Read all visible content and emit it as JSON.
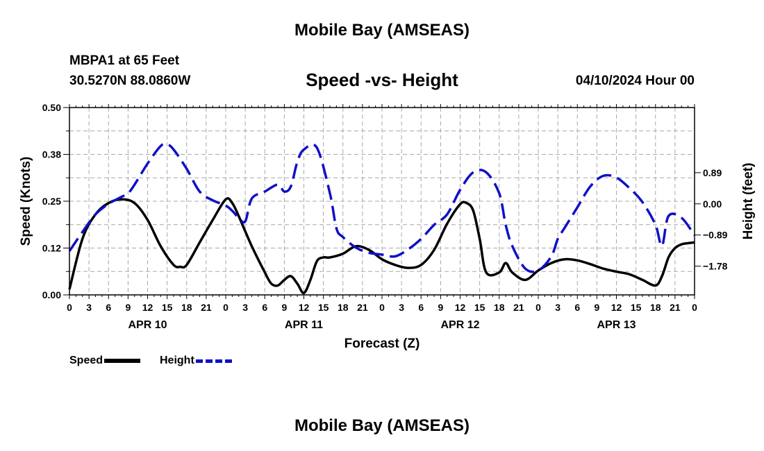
{
  "header": {
    "title": "Mobile Bay (AMSEAS)",
    "station": "MBPA1 at 65 Feet",
    "coords": "30.5270N  88.0860W",
    "subtitle": "Speed -vs- Height",
    "datetime": "04/10/2024 Hour 00"
  },
  "footer": {
    "title": "Mobile Bay (AMSEAS)"
  },
  "colors": {
    "speed": "#000000",
    "height": "#1010c8",
    "grid": "#a8a8a8"
  },
  "legend": {
    "speed_label": "Speed",
    "height_label": "Height"
  },
  "chart_data": {
    "type": "line",
    "title": "Speed -vs- Height",
    "xlabel": "Forecast (Z)",
    "ylabel": "Speed (Knots)",
    "y2label": "Height (feet)",
    "x_range_hours": [
      0,
      96
    ],
    "x_tick_step_hours": 3,
    "x_tick_labels": [
      "0",
      "3",
      "6",
      "9",
      "12",
      "15",
      "18",
      "21",
      "0",
      "3",
      "6",
      "9",
      "12",
      "15",
      "18",
      "21",
      "0",
      "3",
      "6",
      "9",
      "12",
      "15",
      "18",
      "21",
      "0",
      "3",
      "6",
      "9",
      "12",
      "15",
      "18",
      "21",
      "0"
    ],
    "x_day_labels": [
      {
        "label": "APR 10",
        "hour": 12
      },
      {
        "label": "APR 11",
        "hour": 36
      },
      {
        "label": "APR 12",
        "hour": 60
      },
      {
        "label": "APR 13",
        "hour": 84
      }
    ],
    "ylim": [
      0,
      0.5
    ],
    "y_ticks": [
      0,
      0.125,
      0.25,
      0.375,
      0.5
    ],
    "y_tick_labels": [
      "0.00",
      "0.12",
      "0.25",
      "0.38",
      "0.50"
    ],
    "y2lim": [
      -2.6,
      2.75
    ],
    "y2_ticks": [
      -1.78,
      -0.89,
      0.0,
      0.89
    ],
    "y2_tick_labels": [
      "−1.78",
      "−0.89",
      "0.00",
      "0.89"
    ],
    "grid": true,
    "legend_position": "bottom-left",
    "series": [
      {
        "name": "Speed",
        "axis": "left",
        "style": "solid",
        "x": [
          0,
          2,
          4,
          6,
          8,
          10,
          12,
          14,
          16,
          17,
          18,
          20,
          22,
          24,
          25,
          26,
          28,
          30,
          31,
          32,
          33,
          34,
          35,
          36,
          37,
          38,
          39,
          40,
          42,
          44,
          46,
          48,
          50,
          52,
          54,
          56,
          58,
          60,
          61,
          62,
          63,
          64,
          66,
          67,
          68,
          70,
          72,
          74,
          76,
          78,
          80,
          82,
          84,
          86,
          88,
          90,
          91,
          92,
          93,
          94,
          95,
          96
        ],
        "values": [
          0.015,
          0.15,
          0.215,
          0.245,
          0.255,
          0.245,
          0.2,
          0.13,
          0.08,
          0.075,
          0.08,
          0.14,
          0.2,
          0.255,
          0.245,
          0.21,
          0.13,
          0.06,
          0.03,
          0.025,
          0.04,
          0.05,
          0.03,
          0.005,
          0.04,
          0.09,
          0.1,
          0.1,
          0.11,
          0.13,
          0.12,
          0.095,
          0.08,
          0.072,
          0.08,
          0.12,
          0.19,
          0.242,
          0.245,
          0.225,
          0.15,
          0.06,
          0.06,
          0.085,
          0.06,
          0.04,
          0.065,
          0.085,
          0.095,
          0.092,
          0.082,
          0.07,
          0.062,
          0.055,
          0.04,
          0.025,
          0.05,
          0.1,
          0.125,
          0.135,
          0.138,
          0.14
        ]
      },
      {
        "name": "Height",
        "axis": "right",
        "style": "dashed",
        "x": [
          0,
          2,
          4,
          6,
          8,
          9,
          10,
          12,
          14,
          15,
          16,
          18,
          20,
          22,
          24,
          25,
          26,
          27,
          28,
          30,
          32,
          33,
          34,
          35,
          36,
          38,
          40,
          41,
          42,
          44,
          46,
          48,
          50,
          52,
          54,
          56,
          58,
          60,
          62,
          64,
          66,
          67,
          68,
          70,
          72,
          74,
          75,
          76,
          78,
          80,
          82,
          84,
          86,
          88,
          90,
          91,
          92,
          94,
          96
        ],
        "values": [
          -1.35,
          -0.8,
          -0.3,
          0.0,
          0.2,
          0.3,
          0.55,
          1.15,
          1.65,
          1.7,
          1.55,
          1.0,
          0.35,
          0.1,
          -0.05,
          -0.2,
          -0.4,
          -0.5,
          0.15,
          0.35,
          0.55,
          0.35,
          0.5,
          1.2,
          1.55,
          1.6,
          0.3,
          -0.7,
          -0.95,
          -1.25,
          -1.4,
          -1.45,
          -1.5,
          -1.3,
          -1.0,
          -0.6,
          -0.3,
          0.4,
          0.9,
          0.9,
          0.3,
          -0.6,
          -1.2,
          -1.85,
          -1.9,
          -1.5,
          -1.0,
          -0.7,
          -0.1,
          0.5,
          0.8,
          0.75,
          0.45,
          0.05,
          -0.6,
          -1.2,
          -0.35,
          -0.4,
          -0.9
        ]
      }
    ]
  }
}
